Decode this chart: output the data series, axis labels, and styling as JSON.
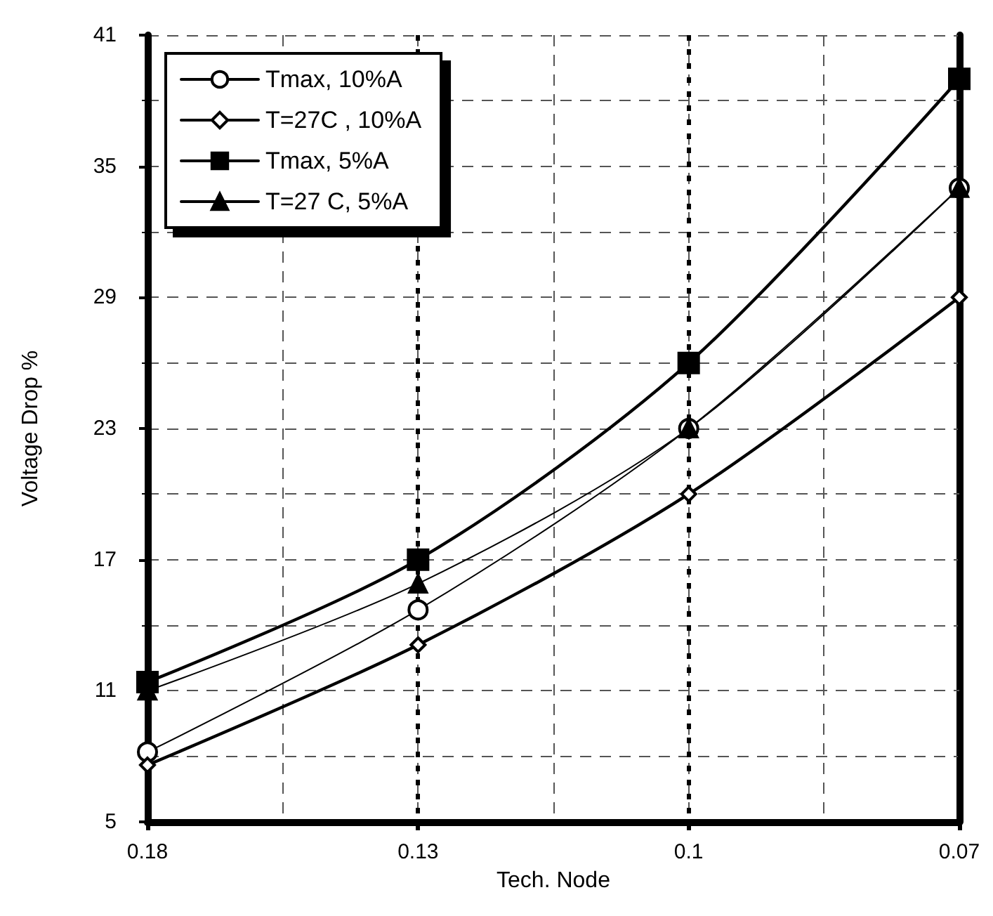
{
  "chart_data": {
    "type": "line",
    "xlabel": "Tech. Node",
    "ylabel": "Voltage Drop %",
    "categories": [
      "0.18",
      "0.13",
      "0.1",
      "0.07"
    ],
    "series": [
      {
        "name": "Tmax, 10%A",
        "color": "#000000",
        "marker": "circle",
        "values": [
          8.2,
          14.7,
          23.0,
          34.0
        ]
      },
      {
        "name": "T=27C , 10%A",
        "color": "#000000",
        "marker": "diamond",
        "values": [
          7.6,
          13.1,
          20.0,
          29.0
        ]
      },
      {
        "name": "Tmax, 5%A",
        "color": "#000000",
        "marker": "square",
        "values": [
          11.4,
          17.0,
          26.0,
          39.0
        ]
      },
      {
        "name": "T=27 C, 5%A",
        "color": "#000000",
        "marker": "triangle",
        "values": [
          11.0,
          15.9,
          23.0,
          34.0
        ]
      }
    ],
    "ylim": [
      5,
      41
    ],
    "yticks": [
      5,
      11,
      17,
      23,
      29,
      35,
      41
    ],
    "grid": true,
    "legend": "top left",
    "line_style": "solid"
  }
}
